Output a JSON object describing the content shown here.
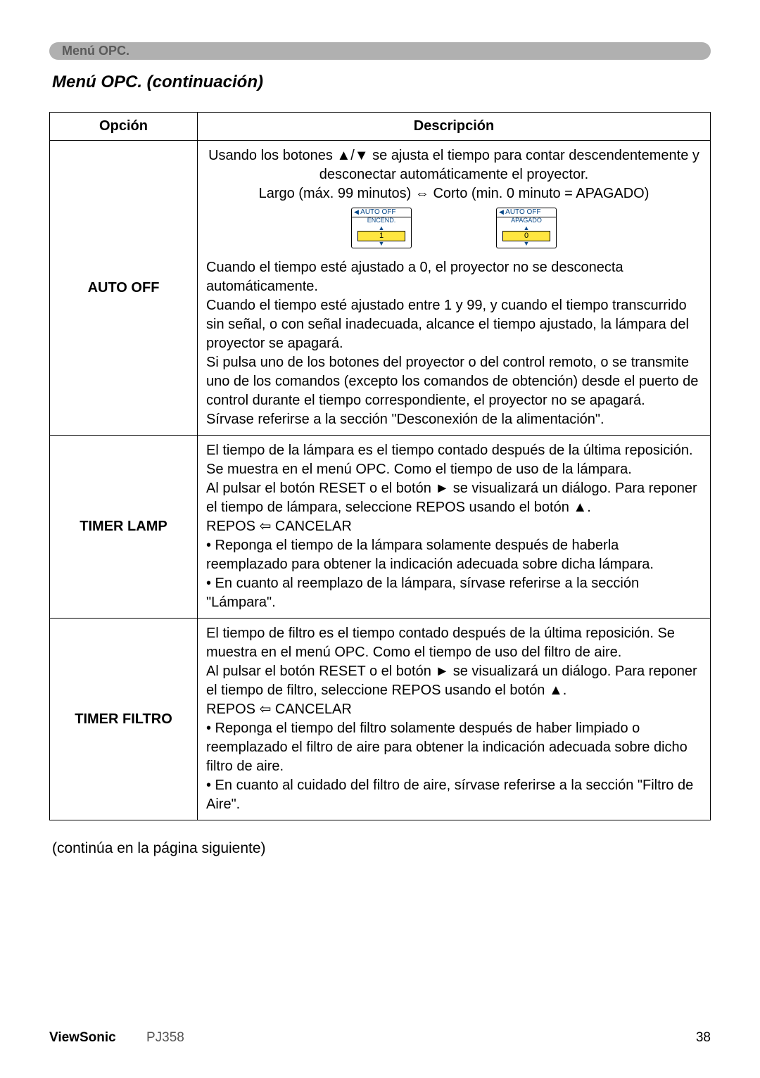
{
  "header_tag": "Menú OPC.",
  "section_title": "Menú OPC. (continuación)",
  "table": {
    "head": {
      "option": "Opción",
      "description": "Descripción"
    },
    "rows": [
      {
        "option": "AUTO OFF",
        "desc_top": "Usando los botones ▲/▼ se ajusta el tiempo para contar descendentemente y desconectar automáticamente el proyector.\nLargo (máx. 99 minutos) ⇔ Corto (min. 0 minuto = APAGADO)",
        "icons": [
          {
            "top_label": "AUTO OFF",
            "mid_label": "ENCEND.",
            "value": "1"
          },
          {
            "top_label": "AUTO OFF",
            "mid_label": "APAGADO",
            "value": "0"
          }
        ],
        "desc_bottom": "Cuando el tiempo esté ajustado a 0, el proyector no se desconecta automáticamente.\nCuando el tiempo esté ajustado entre 1 y 99, y cuando el tiempo transcurrido sin señal, o con señal inadecuada, alcance el tiempo ajustado, la lámpara del proyector se apagará.\nSi pulsa uno de los botones del proyector o del control remoto, o se transmite uno de los comandos (excepto los comandos de obtención) desde el puerto de control durante el tiempo correspondiente, el proyector no se apagará.\nSírvase referirse a la sección \"Desconexión de la alimentación\"."
      },
      {
        "option": "TIMER LAMP",
        "desc": "El tiempo de la lámpara es el tiempo contado después de la última reposición. Se muestra en el menú OPC. Como el tiempo de uso de la lámpara.\nAl pulsar el botón RESET o el botón ► se visualizará un diálogo. Para reponer el tiempo de lámpara, seleccione REPOS usando el botón ▲.\n    REPOS ⇦ CANCELAR\n• Reponga el tiempo de la lámpara solamente después de haberla reemplazado para obtener la indicación adecuada sobre dicha lámpara.\n• En cuanto al reemplazo de la lámpara, sírvase referirse a la sección \"Lámpara\"."
      },
      {
        "option": "TIMER FILTRO",
        "desc": "El tiempo de filtro es el tiempo contado después de la última reposición. Se muestra en el menú OPC. Como el tiempo de uso del filtro de aire.\nAl pulsar el botón RESET o el botón ► se visualizará un diálogo. Para reponer el tiempo de filtro, seleccione REPOS usando el botón ▲.\n    REPOS ⇦ CANCELAR\n• Reponga el tiempo del filtro solamente después de haber limpiado o reemplazado el filtro de aire para obtener la indicación adecuada sobre dicho filtro de aire.\n• En cuanto al cuidado del filtro de aire, sírvase referirse a la sección \"Filtro de Aire\"."
      }
    ]
  },
  "continue_note": "(continúa en la página siguiente)",
  "footer": {
    "brand": "ViewSonic",
    "model": "PJ358",
    "page": "38"
  }
}
